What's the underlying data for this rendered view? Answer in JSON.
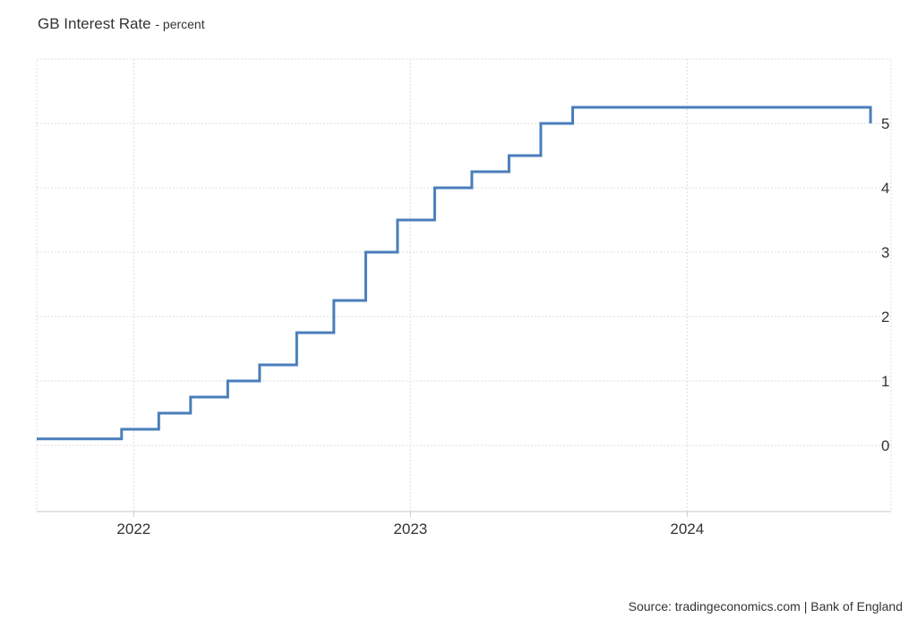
{
  "title": "GB Interest Rate",
  "unit": "- percent",
  "source": "Source: tradingeconomics.com | Bank of England",
  "chart_data": {
    "type": "line",
    "step": true,
    "title": "GB Interest Rate",
    "xlabel": "",
    "ylabel": "",
    "x_ticks": [
      "2022",
      "2023",
      "2024"
    ],
    "y_ticks": [
      "0",
      "1",
      "2",
      "3",
      "4",
      "5"
    ],
    "ylim": [
      -1,
      6
    ],
    "xlim": [
      "2021-08-26",
      "2024-09-26"
    ],
    "grid": true,
    "line_color": "#4a7ebb",
    "series": [
      {
        "name": "",
        "x": [
          "2021-08-26",
          "2021-12-16",
          "2022-02-03",
          "2022-03-17",
          "2022-05-05",
          "2022-06-16",
          "2022-08-04",
          "2022-09-22",
          "2022-11-03",
          "2022-12-15",
          "2023-02-02",
          "2023-03-23",
          "2023-05-11",
          "2023-06-22",
          "2023-08-03",
          "2024-08-01",
          "2024-08-30"
        ],
        "values": [
          0.1,
          0.25,
          0.5,
          0.75,
          1.0,
          1.25,
          1.75,
          2.25,
          3.0,
          3.5,
          4.0,
          4.25,
          4.5,
          5.0,
          5.25,
          5.25,
          5.0
        ]
      }
    ]
  }
}
